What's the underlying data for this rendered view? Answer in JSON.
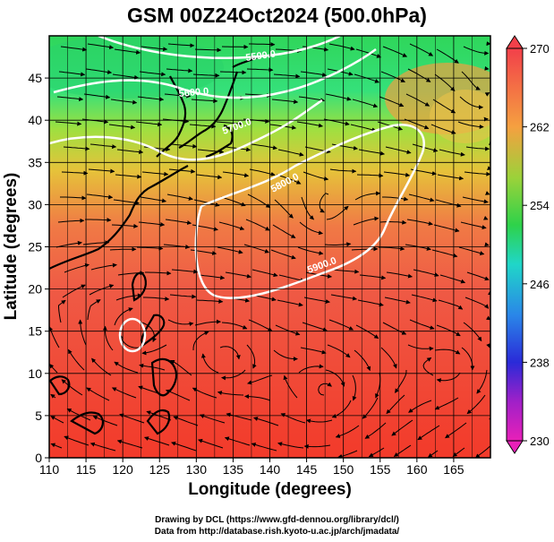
{
  "title": "GSM 00Z24Oct2024 (500.0hPa)",
  "x_axis": {
    "label": "Longitude (degrees)",
    "ticks": [
      "110",
      "115",
      "120",
      "125",
      "130",
      "135",
      "140",
      "145",
      "150",
      "155",
      "160",
      "165"
    ],
    "range": [
      110,
      170
    ]
  },
  "y_axis": {
    "label": "Latitude  (degrees)",
    "ticks": [
      "0",
      "5",
      "10",
      "15",
      "20",
      "25",
      "30",
      "35",
      "40",
      "45"
    ],
    "range": [
      0,
      50
    ]
  },
  "colorbar": {
    "ticks": [
      "270",
      "262",
      "254",
      "246",
      "238",
      "230"
    ],
    "min": 230,
    "max": 270
  },
  "contours": [
    {
      "label": "5500.0"
    },
    {
      "label": "5600.0"
    },
    {
      "label": "5700.0"
    },
    {
      "label": "5800.0"
    },
    {
      "label": "5900.0"
    }
  ],
  "credits": {
    "line1": "Drawing by DCL (https://www.gfd-dennou.org/library/dcl/)",
    "line2": "Data from http://database.rish.kyoto-u.ac.jp/arch/jmadata/"
  }
}
